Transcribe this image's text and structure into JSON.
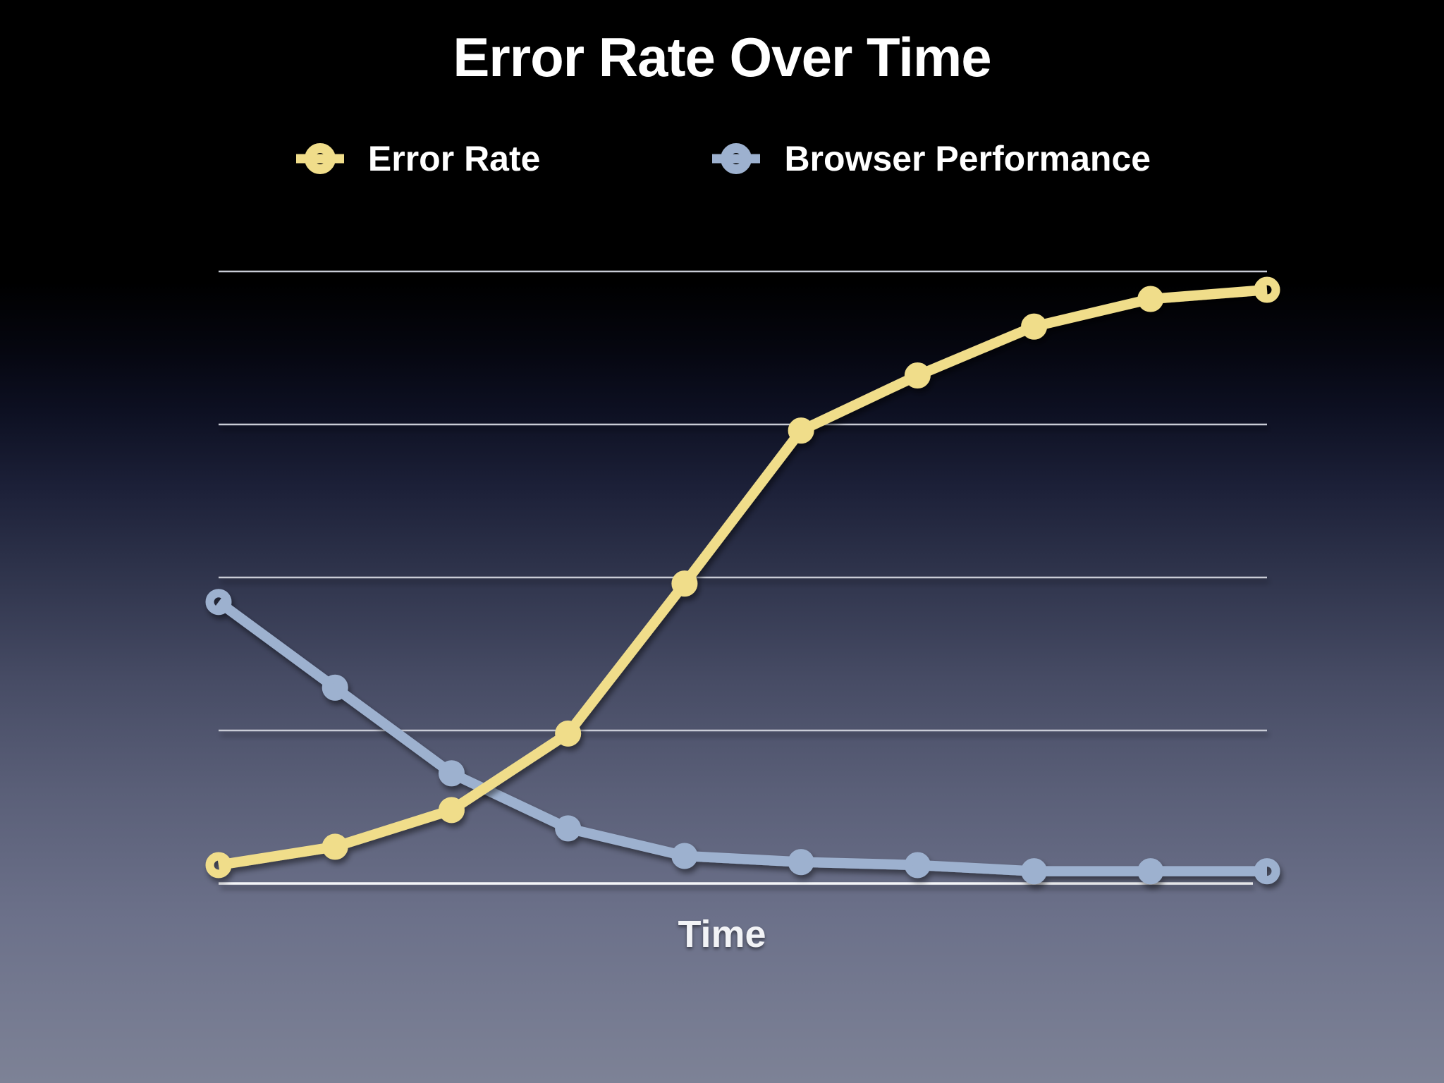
{
  "slide": {
    "title": "Error Rate Over Time",
    "x_axis_label": "Time",
    "background_top_color": "#000000",
    "background_bottom_color": "#7d8296"
  },
  "legend": {
    "items": [
      {
        "label": "Error Rate",
        "color": "#f0dd8a"
      },
      {
        "label": "Browser Performance",
        "color": "#9db1cf"
      }
    ]
  },
  "chart_data": {
    "type": "line",
    "title": "Error Rate Over Time",
    "xlabel": "Time",
    "ylabel": "",
    "x": [
      1,
      2,
      3,
      4,
      5,
      6,
      7,
      8,
      9,
      10
    ],
    "x_tick_labels_visible": false,
    "y_tick_labels_visible": false,
    "ylim": [
      0,
      100
    ],
    "gridlines_y": [
      25,
      50,
      75,
      100
    ],
    "grid": true,
    "legend_position": "top",
    "marker_style": "open-ring",
    "series": [
      {
        "name": "Error Rate",
        "color": "#f0dd8a",
        "values": [
          3,
          6,
          12,
          24.5,
          49,
          74,
          83,
          91,
          95.5,
          97
        ]
      },
      {
        "name": "Browser Performance",
        "color": "#9db1cf",
        "values": [
          46,
          32,
          18,
          9,
          4.5,
          3.5,
          3,
          2,
          2,
          2
        ]
      }
    ]
  }
}
